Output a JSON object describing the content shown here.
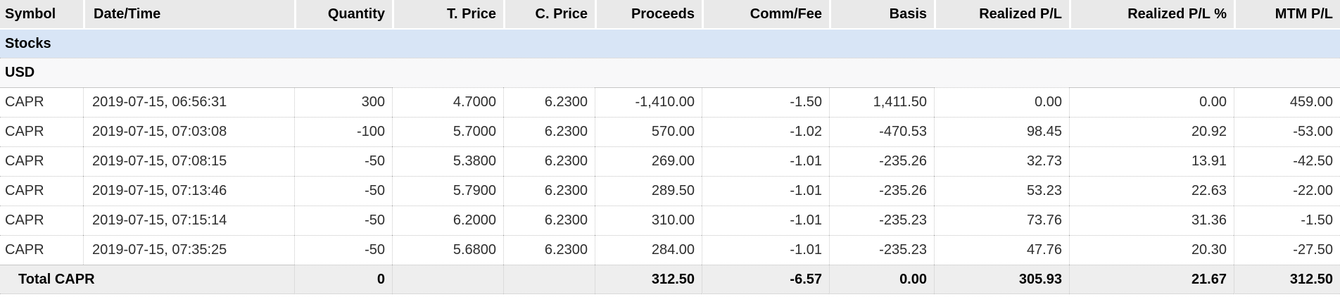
{
  "table": {
    "columns": [
      {
        "key": "symbol",
        "label": "Symbol",
        "align": "left"
      },
      {
        "key": "date-time",
        "label": "Date/Time",
        "align": "left"
      },
      {
        "key": "quantity",
        "label": "Quantity",
        "align": "right"
      },
      {
        "key": "t-price",
        "label": "T. Price",
        "align": "right"
      },
      {
        "key": "c-price",
        "label": "C. Price",
        "align": "right"
      },
      {
        "key": "proceeds",
        "label": "Proceeds",
        "align": "right"
      },
      {
        "key": "comm-fee",
        "label": "Comm/Fee",
        "align": "right"
      },
      {
        "key": "basis",
        "label": "Basis",
        "align": "right"
      },
      {
        "key": "realized-pl",
        "label": "Realized P/L",
        "align": "right"
      },
      {
        "key": "realized-pl-pct",
        "label": "Realized P/L %",
        "align": "right"
      },
      {
        "key": "mtm-pl",
        "label": "MTM P/L",
        "align": "right"
      }
    ],
    "section_label": "Stocks",
    "currency_label": "USD",
    "rows": [
      [
        "CAPR",
        "2019-07-15, 06:56:31",
        "300",
        "4.7000",
        "6.2300",
        "-1,410.00",
        "-1.50",
        "1,411.50",
        "0.00",
        "0.00",
        "459.00"
      ],
      [
        "CAPR",
        "2019-07-15, 07:03:08",
        "-100",
        "5.7000",
        "6.2300",
        "570.00",
        "-1.02",
        "-470.53",
        "98.45",
        "20.92",
        "-53.00"
      ],
      [
        "CAPR",
        "2019-07-15, 07:08:15",
        "-50",
        "5.3800",
        "6.2300",
        "269.00",
        "-1.01",
        "-235.26",
        "32.73",
        "13.91",
        "-42.50"
      ],
      [
        "CAPR",
        "2019-07-15, 07:13:46",
        "-50",
        "5.7900",
        "6.2300",
        "289.50",
        "-1.01",
        "-235.26",
        "53.23",
        "22.63",
        "-22.00"
      ],
      [
        "CAPR",
        "2019-07-15, 07:15:14",
        "-50",
        "6.2000",
        "6.2300",
        "310.00",
        "-1.01",
        "-235.23",
        "73.76",
        "31.36",
        "-1.50"
      ],
      [
        "CAPR",
        "2019-07-15, 07:35:25",
        "-50",
        "5.6800",
        "6.2300",
        "284.00",
        "-1.01",
        "-235.23",
        "47.76",
        "20.30",
        "-27.50"
      ]
    ],
    "total": {
      "label": "Total CAPR",
      "values": [
        "0",
        "",
        "",
        "312.50",
        "-6.57",
        "0.00",
        "305.93",
        "21.67",
        "312.50"
      ]
    },
    "colors": {
      "header_bg": "#e9e9e9",
      "section_bg": "#d8e5f6",
      "currency_bg": "#f8f8f9",
      "total_bg": "#eeeeee",
      "grid_dotted": "#c3c3c3",
      "text": "#2e2e2e"
    }
  }
}
